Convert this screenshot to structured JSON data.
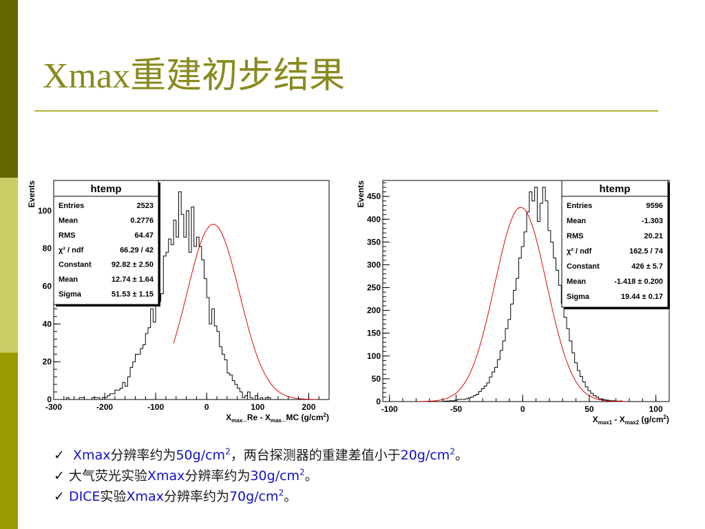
{
  "slide": {
    "title": "Xmax重建初步结果",
    "colors": {
      "side_dark": "#666600",
      "side_light": "#cccc66",
      "side_mid": "#999900",
      "title": "#8a8a1e",
      "rule": "#b0b030",
      "text_blue": "#1010c8",
      "fit_line": "#e00000"
    },
    "bullets": [
      {
        "check": "✓",
        "parts": [
          {
            "text": " Xmax",
            "c": "blue"
          },
          {
            "text": "分辨率约为",
            "c": "zh"
          },
          {
            "text": "50g/cm",
            "c": "blue"
          },
          {
            "text": "2",
            "c": "blue",
            "sup": true
          },
          {
            "text": "，两台探测器的重建差值小于",
            "c": "zh"
          },
          {
            "text": "20g/cm",
            "c": "blue"
          },
          {
            "text": "2",
            "c": "blue",
            "sup": true
          },
          {
            "text": "。",
            "c": "zh"
          }
        ]
      },
      {
        "check": "✓",
        "parts": [
          {
            "text": "大气荧光实验",
            "c": "zh"
          },
          {
            "text": "Xmax",
            "c": "blue"
          },
          {
            "text": "分辨率约为",
            "c": "zh"
          },
          {
            "text": "30g/cm",
            "c": "blue"
          },
          {
            "text": "2",
            "c": "blue",
            "sup": true
          },
          {
            "text": "。",
            "c": "zh"
          }
        ]
      },
      {
        "check": "✓",
        "parts": [
          {
            "text": "DICE",
            "c": "blue"
          },
          {
            "text": "实验",
            "c": "zh"
          },
          {
            "text": "Xmax",
            "c": "blue"
          },
          {
            "text": "分辨率约为",
            "c": "zh"
          },
          {
            "text": "70g/cm",
            "c": "blue"
          },
          {
            "text": "2",
            "c": "blue",
            "sup": true
          },
          {
            "text": "。",
            "c": "zh"
          }
        ]
      }
    ]
  },
  "chart_data": [
    {
      "type": "histogram",
      "ylabel": "Events",
      "xlabel": {
        "parts": [
          [
            "X",
            ""
          ],
          [
            "max",
            "sub"
          ],
          [
            "_Re - X",
            ""
          ],
          [
            "max",
            "sub"
          ],
          [
            "_MC  (g/cm",
            ""
          ],
          [
            "2",
            "sup"
          ],
          [
            ")",
            ""
          ]
        ]
      },
      "xlim": [
        -300,
        240
      ],
      "ylim": [
        0,
        116
      ],
      "xticks": [
        -300,
        -200,
        -100,
        0,
        100,
        200
      ],
      "yticks": [
        0,
        20,
        40,
        60,
        80,
        100
      ],
      "bin_width": 5,
      "bin_values": [
        0,
        0,
        0,
        0,
        0,
        1,
        0,
        0,
        0,
        0,
        1,
        1,
        0,
        0,
        0,
        1,
        1,
        1,
        0,
        1,
        1,
        2,
        3,
        3,
        5,
        5,
        6,
        9,
        7,
        12,
        17,
        20,
        24,
        24,
        27,
        29,
        35,
        38,
        48,
        41,
        60,
        52,
        56,
        76,
        78,
        85,
        82,
        95,
        86,
        110,
        98,
        86,
        100,
        78,
        102,
        81,
        86,
        81,
        74,
        64,
        54,
        40,
        48,
        39,
        36,
        28,
        24,
        21,
        14,
        13,
        10,
        8,
        6,
        4,
        1,
        2,
        4,
        1,
        0,
        2,
        0,
        1,
        0,
        1,
        1,
        0,
        0,
        0,
        0,
        0,
        0,
        0,
        0,
        0,
        0,
        0,
        0,
        0,
        0,
        0,
        0,
        0,
        0,
        0,
        0,
        0,
        0,
        0
      ],
      "fit": {
        "function": "gaus",
        "constant": 92.82,
        "mean": 12.74,
        "sigma": 51.53,
        "range": [
          -65,
          215
        ]
      },
      "stats": {
        "title": "htemp",
        "rows": [
          [
            "Entries",
            "2523"
          ],
          [
            "Mean",
            "0.2776"
          ],
          [
            "RMS",
            "64.47"
          ],
          [
            "χ² / ndf",
            "66.29 / 42"
          ],
          [
            "Constant",
            "92.82 ± 2.50"
          ],
          [
            "Mean",
            "12.74 ± 1.64"
          ],
          [
            "Sigma",
            "51.53 ± 1.15"
          ]
        ]
      }
    },
    {
      "type": "histogram",
      "ylabel": "Events",
      "xlabel": {
        "parts": [
          [
            "X",
            ""
          ],
          [
            "max1",
            "sub"
          ],
          [
            " - X",
            ""
          ],
          [
            "max2",
            "sub"
          ],
          [
            "  (g/cm",
            ""
          ],
          [
            "2",
            "sup"
          ],
          [
            ")",
            ""
          ]
        ]
      },
      "xlim": [
        -105,
        110
      ],
      "ylim": [
        0,
        485
      ],
      "xticks": [
        -100,
        -50,
        0,
        50,
        100
      ],
      "yticks": [
        0,
        50,
        100,
        150,
        200,
        250,
        300,
        350,
        400,
        450
      ],
      "bin_width": 2,
      "bin_values": [
        0,
        0,
        0,
        0,
        0,
        0,
        0,
        0,
        0,
        0,
        0,
        0,
        0,
        0,
        0,
        0,
        0,
        0,
        0,
        0,
        0,
        0,
        0,
        1,
        1,
        2,
        2,
        3,
        5,
        5,
        5,
        6,
        8,
        10,
        13,
        16,
        22,
        28,
        34,
        41,
        54,
        65,
        75,
        92,
        112,
        133,
        160,
        180,
        214,
        244,
        270,
        315,
        340,
        372,
        416,
        460,
        440,
        470,
        395,
        435,
        470,
        440,
        375,
        350,
        315,
        288,
        255,
        215,
        185,
        160,
        133,
        107,
        85,
        68,
        55,
        43,
        32,
        24,
        18,
        13,
        10,
        6,
        5,
        4,
        3,
        2,
        2,
        1,
        1,
        1,
        0,
        0,
        0,
        0,
        0,
        0,
        0,
        0,
        0,
        0,
        0,
        0,
        0,
        0,
        0,
        0,
        0
      ],
      "fit": {
        "function": "gaus",
        "constant": 426,
        "mean": -1.418,
        "sigma": 19.44,
        "range": [
          -78,
          78
        ]
      },
      "stats": {
        "title": "htemp",
        "rows": [
          [
            "Entries",
            "9596"
          ],
          [
            "Mean",
            "-1.303"
          ],
          [
            "RMS",
            "20.21"
          ],
          [
            "χ² / ndf",
            "162.5 / 74"
          ],
          [
            "Constant",
            "426 ± 5.7"
          ],
          [
            "Mean",
            "-1.418 ± 0.200"
          ],
          [
            "Sigma",
            "19.44 ± 0.17"
          ]
        ]
      }
    }
  ]
}
